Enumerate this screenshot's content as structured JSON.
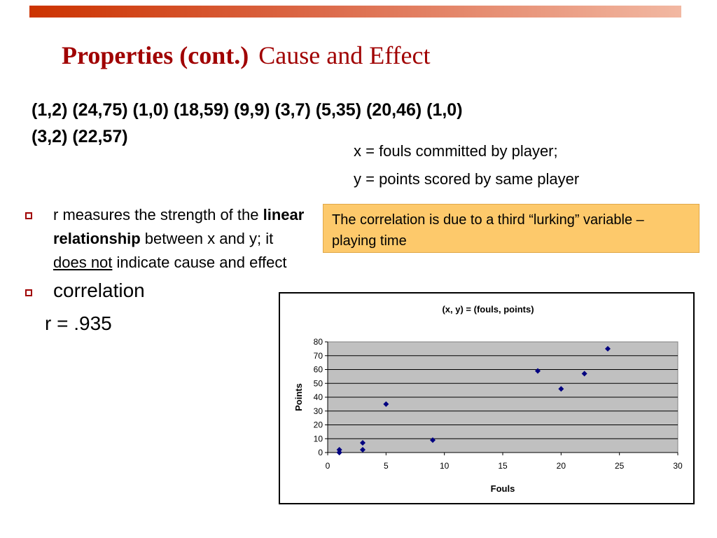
{
  "slide": {
    "title_bold": "Properties (cont.)",
    "title_rest": "Cause and Effect",
    "pairs_line1": "(1,2) (24,75) (1,0) (18,59) (9,9) (3,7) (5,35) (20,46) (1,0)",
    "pairs_line2": "(3,2) (22,57)",
    "def_x": "x = fouls committed by player;",
    "def_y": "y = points scored by same player",
    "callout": "The correlation is due to a third “lurking” variable – playing time",
    "bullet1": {
      "part1": "r measures the strength of the ",
      "bold": "linear relationship",
      "part2": " between x and y; it ",
      "underlined": "does not",
      "part3": " indicate cause and effect"
    },
    "bullet2": "correlation",
    "r_value": "r = .935",
    "colors": {
      "title": "#a00000",
      "callout_bg": "#fdc96b",
      "plot_bg": "#c0c0c0",
      "marker": "#000080"
    }
  },
  "chart_data": {
    "type": "scatter",
    "title": "(x, y) = (fouls, points)",
    "xlabel": "Fouls",
    "ylabel": "Points",
    "xlim": [
      0,
      30
    ],
    "ylim": [
      0,
      80
    ],
    "xticks": [
      0,
      5,
      10,
      15,
      20,
      25,
      30
    ],
    "yticks": [
      0,
      10,
      20,
      30,
      40,
      50,
      60,
      70,
      80
    ],
    "grid": "horizontal",
    "legend": "none",
    "marker": "diamond",
    "series": [
      {
        "x": [
          1,
          24,
          1,
          18,
          9,
          3,
          5,
          20,
          1,
          3,
          22
        ],
        "y": [
          2,
          75,
          0,
          59,
          9,
          7,
          35,
          46,
          0,
          2,
          57
        ]
      }
    ]
  }
}
